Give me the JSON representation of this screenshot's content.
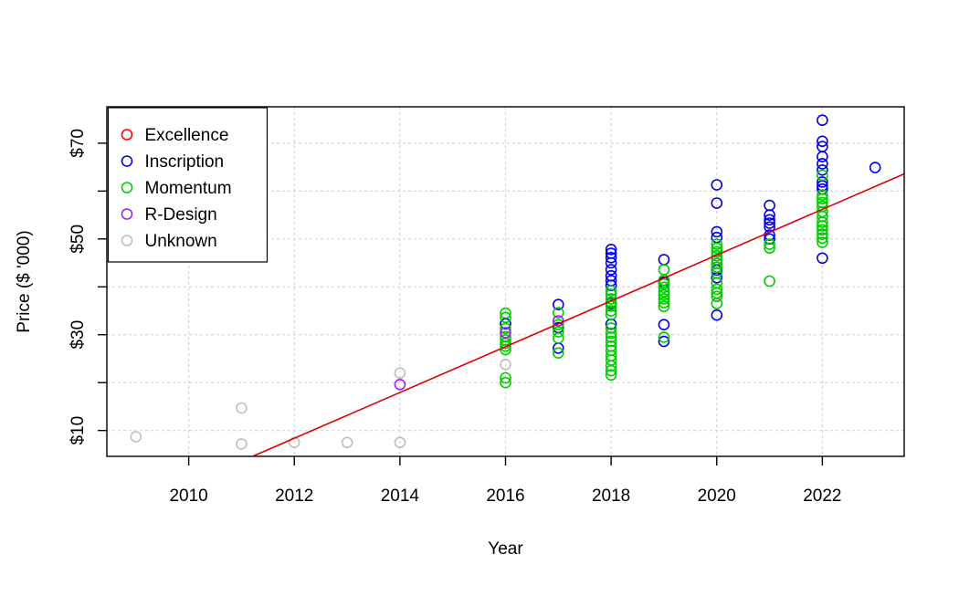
{
  "chart_data": {
    "type": "scatter",
    "title": "",
    "xlabel": "Year",
    "ylabel": "Price ($ '000)",
    "x_domain": [
      2008.45,
      2023.55
    ],
    "y_domain": [
      4.6,
      77.6
    ],
    "x_ticks": [
      2010,
      2012,
      2014,
      2016,
      2018,
      2020,
      2022
    ],
    "x_tick_labels": [
      "2010",
      "2012",
      "2014",
      "2016",
      "2018",
      "2020",
      "2022"
    ],
    "y_ticks": [
      10,
      20,
      30,
      40,
      50,
      60,
      70
    ],
    "y_tick_labels": [
      "$10",
      "",
      "$30",
      "",
      "$50",
      "",
      "$70"
    ],
    "grid": true,
    "colors": {
      "excellence": "#ff0000",
      "inscription": "#0000ee",
      "momentum": "#00cc00",
      "rdesign": "#a020f0",
      "unknown": "#bebebe",
      "trend": "#dd0000"
    },
    "legend": {
      "position": "top-left",
      "entries": [
        {
          "label": "Excellence",
          "color": "#ff0000"
        },
        {
          "label": "Inscription",
          "color": "#0000ee"
        },
        {
          "label": "Momentum",
          "color": "#00cc00"
        },
        {
          "label": "R-Design",
          "color": "#a020f0"
        },
        {
          "label": "Unknown",
          "color": "#bebebe"
        }
      ]
    },
    "trend_line": {
      "color": "#dd0000",
      "x1": 2011.23,
      "y1": 4.7,
      "x2": 2023.55,
      "y2": 63.6
    },
    "series": [
      {
        "name": "Excellence",
        "color": "#ff0000",
        "points": []
      },
      {
        "name": "Inscription",
        "color": "#0000ee",
        "points": [
          [
            2016,
            32.3
          ],
          [
            2017,
            36.3
          ],
          [
            2017,
            31.5
          ],
          [
            2017,
            27.2
          ],
          [
            2018,
            47.8
          ],
          [
            2018,
            47.0
          ],
          [
            2018,
            46.1
          ],
          [
            2018,
            45.0
          ],
          [
            2018,
            43.6
          ],
          [
            2018,
            42.3
          ],
          [
            2018,
            41.3
          ],
          [
            2018,
            40.3
          ],
          [
            2018,
            36.5
          ],
          [
            2018,
            32.2
          ],
          [
            2019,
            45.7
          ],
          [
            2019,
            41.0
          ],
          [
            2019,
            32.1
          ],
          [
            2019,
            28.6
          ],
          [
            2020,
            61.3
          ],
          [
            2020,
            57.5
          ],
          [
            2020,
            51.5
          ],
          [
            2020,
            50.3
          ],
          [
            2020,
            43.5
          ],
          [
            2020,
            41.9
          ],
          [
            2020,
            34.1
          ],
          [
            2021,
            57.0
          ],
          [
            2021,
            55.0
          ],
          [
            2021,
            54.0
          ],
          [
            2021,
            53.3
          ],
          [
            2021,
            52.5
          ],
          [
            2021,
            50.8
          ],
          [
            2021,
            50.0
          ],
          [
            2022,
            74.8
          ],
          [
            2022,
            70.4
          ],
          [
            2022,
            69.3
          ],
          [
            2022,
            67.2
          ],
          [
            2022,
            65.7
          ],
          [
            2022,
            64.4
          ],
          [
            2022,
            61.9
          ],
          [
            2022,
            61.1
          ],
          [
            2022,
            60.4
          ],
          [
            2022,
            46.0
          ],
          [
            2023,
            64.9
          ]
        ]
      },
      {
        "name": "Momentum",
        "color": "#00cc00",
        "points": [
          [
            2016,
            34.5
          ],
          [
            2016,
            33.6
          ],
          [
            2016,
            31.3
          ],
          [
            2016,
            29.6
          ],
          [
            2016,
            28.9
          ],
          [
            2016,
            28.2
          ],
          [
            2016,
            27.6
          ],
          [
            2016,
            26.9
          ],
          [
            2016,
            21.0
          ],
          [
            2016,
            20.0
          ],
          [
            2017,
            34.6
          ],
          [
            2017,
            32.1
          ],
          [
            2017,
            30.6
          ],
          [
            2017,
            29.3
          ],
          [
            2017,
            26.2
          ],
          [
            2018,
            39.2
          ],
          [
            2018,
            38.4
          ],
          [
            2018,
            37.5
          ],
          [
            2018,
            36.8
          ],
          [
            2018,
            36.0
          ],
          [
            2018,
            35.0
          ],
          [
            2018,
            34.2
          ],
          [
            2018,
            31.4
          ],
          [
            2018,
            30.3
          ],
          [
            2018,
            29.5
          ],
          [
            2018,
            28.6
          ],
          [
            2018,
            27.6
          ],
          [
            2018,
            26.7
          ],
          [
            2018,
            25.6
          ],
          [
            2018,
            24.7
          ],
          [
            2018,
            23.5
          ],
          [
            2018,
            22.5
          ],
          [
            2018,
            21.6
          ],
          [
            2019,
            43.6
          ],
          [
            2019,
            41.4
          ],
          [
            2019,
            40.6
          ],
          [
            2019,
            39.9
          ],
          [
            2019,
            39.0
          ],
          [
            2019,
            38.3
          ],
          [
            2019,
            37.5
          ],
          [
            2019,
            36.7
          ],
          [
            2019,
            35.9
          ],
          [
            2019,
            29.5
          ],
          [
            2020,
            48.9
          ],
          [
            2020,
            48.1
          ],
          [
            2020,
            47.3
          ],
          [
            2020,
            46.5
          ],
          [
            2020,
            45.7
          ],
          [
            2020,
            44.9
          ],
          [
            2020,
            44.1
          ],
          [
            2020,
            42.9
          ],
          [
            2020,
            40.8
          ],
          [
            2020,
            39.5
          ],
          [
            2020,
            38.7
          ],
          [
            2020,
            38.0
          ],
          [
            2020,
            36.5
          ],
          [
            2021,
            48.9
          ],
          [
            2021,
            48.1
          ],
          [
            2021,
            41.2
          ],
          [
            2022,
            63.3
          ],
          [
            2022,
            59.2
          ],
          [
            2022,
            58.4
          ],
          [
            2022,
            57.6
          ],
          [
            2022,
            56.8
          ],
          [
            2022,
            55.7
          ],
          [
            2022,
            54.7
          ],
          [
            2022,
            53.5
          ],
          [
            2022,
            52.7
          ],
          [
            2022,
            51.9
          ],
          [
            2022,
            51.0
          ],
          [
            2022,
            50.2
          ],
          [
            2022,
            49.3
          ]
        ]
      },
      {
        "name": "R-Design",
        "color": "#a020f0",
        "points": [
          [
            2014,
            19.6
          ],
          [
            2016,
            30.4
          ],
          [
            2017,
            32.9
          ]
        ]
      },
      {
        "name": "Unknown",
        "color": "#bebebe",
        "points": [
          [
            2009,
            8.7
          ],
          [
            2011,
            14.7
          ],
          [
            2011,
            7.2
          ],
          [
            2012,
            7.5
          ],
          [
            2013,
            7.5
          ],
          [
            2014,
            22.0
          ],
          [
            2014,
            7.5
          ],
          [
            2016,
            23.8
          ]
        ]
      }
    ]
  }
}
